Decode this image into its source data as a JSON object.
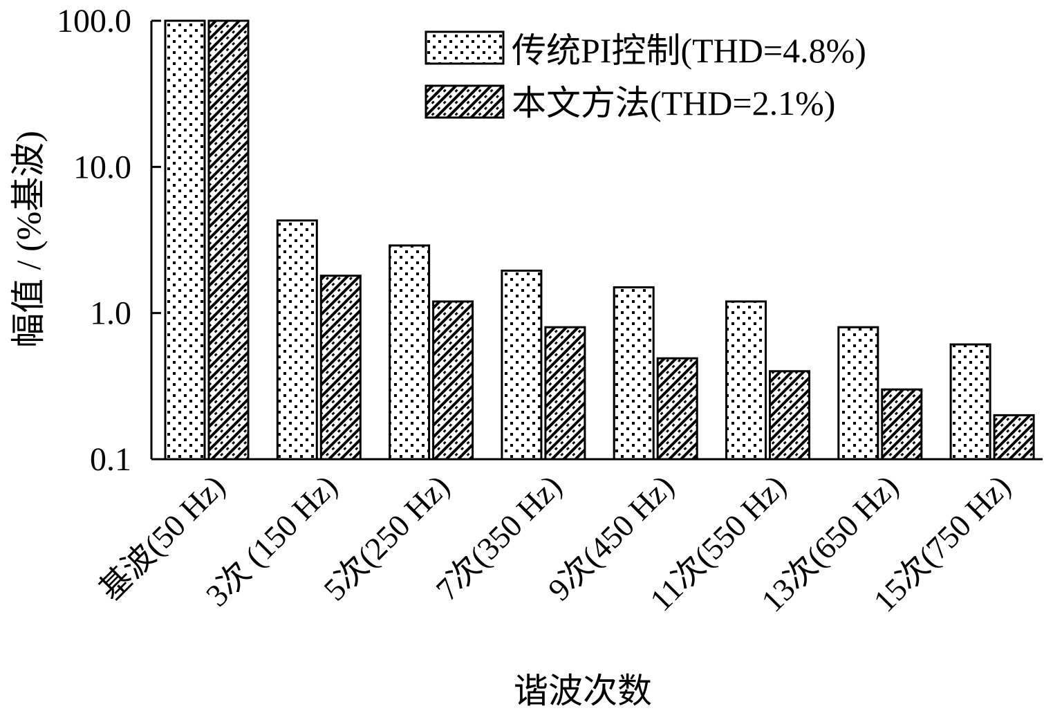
{
  "chart_data": {
    "type": "bar",
    "xlabel": "谐波次数",
    "ylabel": "幅值 / (%基波)",
    "yscale": "log",
    "ylim": [
      0.1,
      100
    ],
    "ytick_labels": [
      "100.0",
      "10.0",
      "1.0",
      "0.1"
    ],
    "yticks": [
      100,
      10,
      1,
      0.1
    ],
    "categories": [
      "基波(50 Hz)",
      "3次 (150 Hz)",
      "5次(250 Hz)",
      "7次(350 Hz)",
      "9次(450 Hz)",
      "11次(550 Hz)",
      "13次(650 Hz)",
      "15次(750 Hz)"
    ],
    "series": [
      {
        "name": "传统PI控制(THD=4.8%)",
        "pattern": "dots",
        "values": [
          100,
          4.3,
          2.9,
          1.95,
          1.5,
          1.2,
          0.8,
          0.61
        ]
      },
      {
        "name": "本文方法(THD=2.1%)",
        "pattern": "diagonal-hatch",
        "values": [
          100,
          1.8,
          1.2,
          0.8,
          0.49,
          0.4,
          0.3,
          0.2
        ]
      }
    ],
    "legend_position": "top-right",
    "grid": false,
    "colors": {
      "bar_fill": "#ffffff",
      "ink": "#000000"
    }
  }
}
